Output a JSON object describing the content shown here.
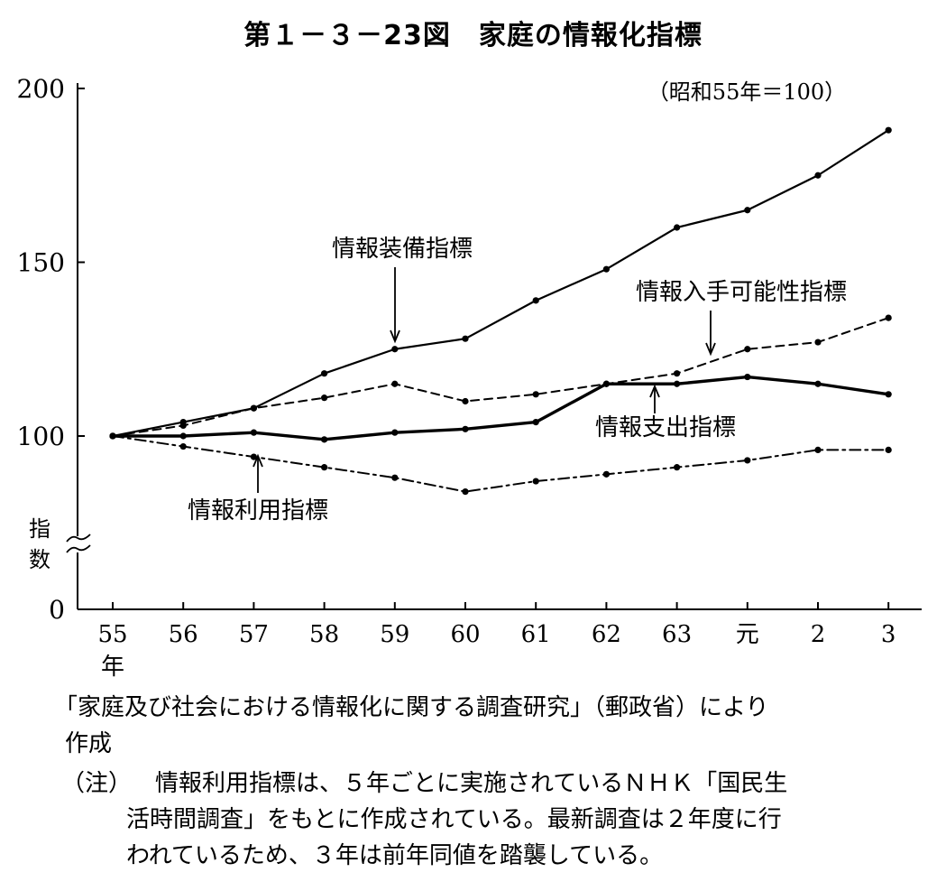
{
  "title": "第１－３－23図　家庭の情報化指標",
  "chart_data": {
    "type": "line",
    "base_note": "（昭和55年＝100）",
    "ylabel": "指数",
    "ylim": [
      0,
      200
    ],
    "yticks": [
      0,
      100,
      150,
      200
    ],
    "categories": [
      "55",
      "56",
      "57",
      "58",
      "59",
      "60",
      "61",
      "62",
      "63",
      "元",
      "2",
      "3"
    ],
    "x_unit_label": "年",
    "series": [
      {
        "name": "情報装備指標",
        "style": "solid",
        "color": "#000000",
        "values": [
          100,
          104,
          108,
          118,
          125,
          128,
          139,
          148,
          160,
          165,
          175,
          188
        ]
      },
      {
        "name": "情報入手可能性指標",
        "style": "dashed",
        "color": "#000000",
        "values": [
          100,
          103,
          108,
          111,
          115,
          110,
          112,
          115,
          118,
          125,
          127,
          134
        ]
      },
      {
        "name": "情報支出指標",
        "style": "bold",
        "color": "#000000",
        "values": [
          100,
          100,
          101,
          99,
          101,
          102,
          104,
          115,
          115,
          117,
          115,
          112
        ]
      },
      {
        "name": "情報利用指標",
        "style": "dashdot",
        "color": "#000000",
        "values": [
          100,
          97,
          94,
          91,
          88,
          84,
          87,
          89,
          91,
          93,
          96,
          96
        ]
      }
    ]
  },
  "source_line1": "「家庭及び社会における情報化に関する調査研究」（郵政省）により",
  "source_line2": "作成",
  "note_label": "（注）",
  "note_line1": "情報利用指標は、５年ごとに実施されているＮＨＫ「国民生",
  "note_line2": "活時間調査」をもとに作成されている。最新調査は２年度に行",
  "note_line3": "われているため、３年は前年同値を踏襲している。"
}
